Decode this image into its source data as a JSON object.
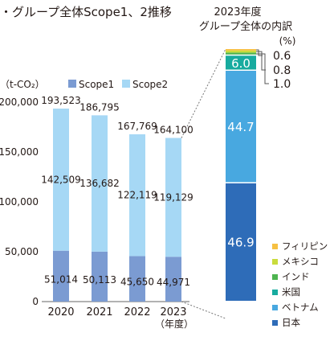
{
  "chart_data": [
    {
      "type": "bar",
      "stacked": true,
      "title": "・グループ全体Scope1、2推移",
      "unit_label": "（t-CO₂）",
      "categories": [
        "2020",
        "2021",
        "2022",
        "2023"
      ],
      "x_unit": "（年度）",
      "ylim": [
        0,
        200000
      ],
      "yticks": [
        0,
        50000,
        100000,
        150000,
        200000
      ],
      "ytick_labels": [
        "0",
        "50,000",
        "100,000",
        "150,000",
        "200,000"
      ],
      "series": [
        {
          "name": "Scope1",
          "color": "#7b9bd2",
          "values": [
            51014,
            50113,
            45650,
            44971
          ],
          "labels": [
            "51,014",
            "50,113",
            "45,650",
            "44,971"
          ]
        },
        {
          "name": "Scope2",
          "color": "#a6d8f5",
          "values": [
            142509,
            136682,
            122119,
            119129
          ],
          "labels": [
            "142,509",
            "136,682",
            "122,119",
            "119,129"
          ]
        }
      ],
      "totals": [
        193523,
        186795,
        167769,
        164100
      ],
      "total_labels": [
        "193,523",
        "186,795",
        "167,769",
        "164,100"
      ],
      "legend": "top"
    },
    {
      "type": "bar",
      "stacked": true,
      "title_line1": "2023年度",
      "title_line2": "グループ全体の内訳",
      "unit": "(%)",
      "series": [
        {
          "name": "日本",
          "value": 46.9,
          "label": "46.9",
          "color": "#2e6cb8"
        },
        {
          "name": "ベトナム",
          "value": 44.7,
          "label": "44.7",
          "color": "#48a8e0"
        },
        {
          "name": "米国",
          "value": 6.0,
          "label": "6.0",
          "color": "#17ab9f"
        },
        {
          "name": "インド",
          "value": 1.0,
          "label": "1.0",
          "color": "#4eb450"
        },
        {
          "name": "メキシコ",
          "value": 0.8,
          "label": "0.8",
          "color": "#c9dc3c"
        },
        {
          "name": "フィリピン",
          "value": 0.6,
          "label": "0.6",
          "color": "#f6c042"
        }
      ],
      "legend_order": [
        "フィリピン",
        "メキシコ",
        "インド",
        "米国",
        "ベトナム",
        "日本"
      ],
      "legend": "right"
    }
  ]
}
